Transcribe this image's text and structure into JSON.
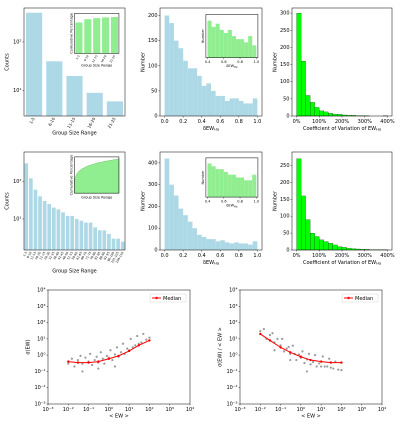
{
  "chart_data": [
    {
      "type": "bar",
      "yscale": "log",
      "color": "#add8e6",
      "categories": [
        "1-5",
        "6-10",
        "11-15",
        "16-20",
        "21-25"
      ],
      "values": [
        400,
        40,
        20,
        9,
        6
      ],
      "ylim": [
        3,
        500
      ],
      "yticks": [
        {
          "value": 10,
          "label": "10¹"
        },
        {
          "value": 100,
          "label": "10²"
        }
      ],
      "ylabel": "Counts",
      "xlabel": "Group Size Range",
      "inset": {
        "type": "bar",
        "color": "#90ee90",
        "categories": [
          "1-5",
          "6-10",
          "11-15",
          "16-20",
          "21-25"
        ],
        "values": [
          85,
          94,
          97,
          99,
          100
        ],
        "ylim": [
          0,
          110
        ],
        "ylabel": "Cumulative Percentage",
        "xlabel": "Group Size Range"
      }
    },
    {
      "type": "histogram",
      "color": "#add8e6",
      "bins": [
        0,
        0.05,
        0.1,
        0.15,
        0.2,
        0.25,
        0.3,
        0.35,
        0.4,
        0.45,
        0.5,
        0.55,
        0.6,
        0.65,
        0.7,
        0.75,
        0.8,
        0.85,
        0.9,
        0.95,
        1.0
      ],
      "values": [
        200,
        185,
        150,
        135,
        110,
        95,
        95,
        80,
        60,
        65,
        50,
        40,
        40,
        30,
        35,
        35,
        30,
        25,
        25,
        35
      ],
      "xlim": [
        -0.05,
        1.05
      ],
      "ylim": [
        0,
        215
      ],
      "xticks": [
        {
          "value": 0,
          "label": "0.0"
        },
        0.2,
        0.4,
        0.6,
        0.8,
        {
          "value": 1,
          "label": "1.0"
        }
      ],
      "yticks": [
        0,
        50,
        100,
        150,
        200
      ],
      "ylabel": "Number",
      "xlabel": {
        "text": "δEW",
        "sub": "Hα"
      },
      "inset": {
        "type": "histogram",
        "color": "#90ee90",
        "bins": [
          0.4,
          0.45,
          0.5,
          0.55,
          0.6,
          0.65,
          0.7,
          0.75,
          0.8,
          0.85,
          0.9,
          0.95,
          1.0
        ],
        "values": [
          60,
          50,
          55,
          45,
          40,
          45,
          35,
          30,
          30,
          25,
          35,
          20
        ],
        "xlim": [
          0.38,
          1.02
        ],
        "ylim": [
          0,
          70
        ],
        "xticks": [
          0.4,
          0.6,
          0.8,
          {
            "value": 1,
            "label": "1.0"
          }
        ],
        "ylabel": "Number",
        "xlabel": {
          "text": "δEW",
          "sub": "Hα"
        }
      }
    },
    {
      "type": "histogram",
      "color": "#00ff00",
      "bins": [
        0,
        20,
        40,
        60,
        80,
        100,
        120,
        140,
        160,
        180,
        200,
        220,
        240,
        260,
        280,
        300,
        320,
        340,
        360,
        380,
        400
      ],
      "values": [
        300,
        160,
        60,
        40,
        25,
        15,
        12,
        8,
        5,
        5,
        3,
        2,
        2,
        1,
        1,
        1,
        0,
        0,
        0,
        1
      ],
      "xlim": [
        -20,
        420
      ],
      "ylim": [
        0,
        315
      ],
      "xticks": [
        {
          "value": 0,
          "label": "0%"
        },
        {
          "value": 100,
          "label": "100%"
        },
        {
          "value": 200,
          "label": "200%"
        },
        {
          "value": 300,
          "label": "300%"
        },
        {
          "value": 400,
          "label": "400%"
        }
      ],
      "yticks": [
        0,
        50,
        100,
        150,
        200,
        250,
        300
      ],
      "ylabel": "Number",
      "xlabel": {
        "text": "Coefficient of Variation of EW",
        "sub": "Hα"
      }
    },
    {
      "type": "bar",
      "yscale": "log",
      "color": "#add8e6",
      "categories": [
        "1-5",
        "6-10",
        "11-15",
        "16-20",
        "21-25",
        "26-30",
        "31-35",
        "36-40",
        "41-45",
        "46-50",
        "51-55",
        "56-60",
        "61-65",
        "66-70",
        "71-75",
        "76-80",
        "81-85",
        "86-90",
        "91-95",
        "96-100",
        "101-105",
        "106-110"
      ],
      "values": [
        300,
        120,
        60,
        40,
        30,
        25,
        20,
        18,
        15,
        12,
        12,
        10,
        9,
        8,
        8,
        6,
        5,
        5,
        4,
        3,
        3,
        2.5
      ],
      "ylim": [
        1.5,
        600
      ],
      "yticks": [
        {
          "value": 10,
          "label": "10¹"
        },
        {
          "value": 100,
          "label": "10²"
        }
      ],
      "ylabel": "Counts",
      "xlabel": "Group Size Range",
      "inset": {
        "type": "area",
        "color": "#90ee90",
        "values": [
          40,
          55,
          63,
          68,
          72,
          75,
          78,
          80,
          82,
          84,
          86,
          88,
          89,
          90,
          92,
          93,
          94,
          95,
          96,
          97,
          98,
          100
        ],
        "ylim": [
          0,
          105
        ],
        "ylabel": "Cumulative Percentage",
        "xlabel": "Group Size Range"
      }
    },
    {
      "type": "histogram",
      "color": "#add8e6",
      "bins": [
        0,
        0.05,
        0.1,
        0.15,
        0.2,
        0.25,
        0.3,
        0.35,
        0.4,
        0.45,
        0.5,
        0.55,
        0.6,
        0.65,
        0.7,
        0.75,
        0.8,
        0.85,
        0.9,
        0.95,
        1.0
      ],
      "values": [
        420,
        300,
        250,
        190,
        160,
        130,
        100,
        70,
        60,
        50,
        50,
        40,
        45,
        35,
        30,
        35,
        30,
        30,
        25,
        40
      ],
      "xlim": [
        -0.05,
        1.05
      ],
      "ylim": [
        0,
        450
      ],
      "xticks": [
        {
          "value": 0,
          "label": "0.0"
        },
        0.2,
        0.4,
        0.6,
        0.8,
        {
          "value": 1,
          "label": "1.0"
        }
      ],
      "yticks": [
        0,
        100,
        200,
        300,
        400
      ],
      "ylabel": "Number",
      "xlabel": {
        "text": "δEW",
        "sub": "Hα"
      },
      "inset": {
        "type": "histogram",
        "color": "#90ee90",
        "bins": [
          0.4,
          0.45,
          0.5,
          0.55,
          0.6,
          0.65,
          0.7,
          0.75,
          0.8,
          0.85,
          0.9,
          0.95,
          1.0
        ],
        "values": [
          60,
          55,
          50,
          50,
          45,
          40,
          40,
          35,
          35,
          30,
          30,
          40
        ],
        "xlim": [
          0.38,
          1.02
        ],
        "ylim": [
          0,
          70
        ],
        "xticks": [
          0.4,
          0.6,
          0.8,
          {
            "value": 1,
            "label": "1.0"
          }
        ],
        "ylabel": "Number",
        "xlabel": {
          "text": "δEW",
          "sub": "Hα"
        }
      }
    },
    {
      "type": "histogram",
      "color": "#00ff00",
      "bins": [
        0,
        20,
        40,
        60,
        80,
        100,
        120,
        140,
        160,
        180,
        200,
        220,
        240,
        260,
        280,
        300,
        320,
        340,
        360,
        380,
        400
      ],
      "values": [
        270,
        160,
        90,
        50,
        40,
        30,
        25,
        20,
        15,
        10,
        8,
        5,
        4,
        3,
        2,
        2,
        1,
        1,
        1,
        1
      ],
      "xlim": [
        -20,
        420
      ],
      "ylim": [
        0,
        290
      ],
      "xticks": [
        {
          "value": 0,
          "label": "0%"
        },
        {
          "value": 100,
          "label": "100%"
        },
        {
          "value": 200,
          "label": "200%"
        },
        {
          "value": 300,
          "label": "300%"
        },
        {
          "value": 400,
          "label": "400%"
        }
      ],
      "yticks": [
        0,
        50,
        100,
        150,
        200,
        250
      ],
      "ylabel": "Number",
      "xlabel": {
        "text": "Coefficient of Variation of EW",
        "sub": "Hα"
      }
    },
    {
      "type": "scatter",
      "xscale": "log",
      "yscale": "log",
      "legend": "upper right",
      "xlim": [
        0.001,
        10000
      ],
      "ylim": [
        0.001,
        10000
      ],
      "xticks": [
        {
          "value": 0.001,
          "label": "10⁻³"
        },
        {
          "value": 0.01,
          "label": "10⁻²"
        },
        {
          "value": 0.1,
          "label": "10⁻¹"
        },
        {
          "value": 1,
          "label": "10⁰"
        },
        {
          "value": 10,
          "label": "10¹"
        },
        {
          "value": 100,
          "label": "10²"
        },
        {
          "value": 1000,
          "label": "10³"
        },
        {
          "value": 10000,
          "label": "10⁴"
        }
      ],
      "yticks": [
        {
          "value": 0.001,
          "label": "10⁻³"
        },
        {
          "value": 0.01,
          "label": "10⁻²"
        },
        {
          "value": 0.1,
          "label": "10⁻¹"
        },
        {
          "value": 1,
          "label": "10⁰"
        },
        {
          "value": 10,
          "label": "10¹"
        },
        {
          "value": 100,
          "label": "10²"
        },
        {
          "value": 1000,
          "label": "10³"
        },
        {
          "value": 10000,
          "label": "10⁴"
        }
      ],
      "xlabel": "< EW >",
      "ylabel": "σ(EW)",
      "points": {
        "color": "#808080",
        "x": [
          0.01,
          0.015,
          0.02,
          0.03,
          0.04,
          0.05,
          0.07,
          0.1,
          0.12,
          0.15,
          0.2,
          0.25,
          0.3,
          0.4,
          0.5,
          0.6,
          0.8,
          1,
          1.2,
          1.5,
          2,
          2.5,
          3,
          4,
          5,
          6,
          8,
          10,
          12,
          15,
          20,
          25,
          30,
          40,
          50,
          70,
          100,
          0.05,
          0.3,
          2
        ],
        "y": [
          0.3,
          0.6,
          0.2,
          0.5,
          0.9,
          0.3,
          0.7,
          0.4,
          1.2,
          0.25,
          0.5,
          0.8,
          0.35,
          1.5,
          0.6,
          0.3,
          0.9,
          0.7,
          2,
          0.5,
          1.1,
          3,
          0.8,
          1.5,
          5,
          1.2,
          2.5,
          2,
          10,
          3,
          4,
          15,
          5,
          6,
          20,
          9,
          12,
          0.1,
          0.15,
          0.2
        ]
      },
      "series": [
        {
          "name": "Median",
          "color": "#ff0000",
          "x": [
            0.01,
            0.03,
            0.1,
            0.3,
            1,
            3,
            10,
            30,
            100
          ],
          "y": [
            0.4,
            0.35,
            0.35,
            0.4,
            0.6,
            0.9,
            1.8,
            4,
            8
          ]
        }
      ]
    },
    {
      "type": "scatter",
      "xscale": "log",
      "yscale": "log",
      "legend": "upper right",
      "xlim": [
        0.001,
        10000
      ],
      "ylim": [
        0.001,
        10000
      ],
      "xticks": [
        {
          "value": 0.001,
          "label": "10⁻³"
        },
        {
          "value": 0.01,
          "label": "10⁻²"
        },
        {
          "value": 0.1,
          "label": "10⁻¹"
        },
        {
          "value": 1,
          "label": "10⁰"
        },
        {
          "value": 10,
          "label": "10¹"
        },
        {
          "value": 100,
          "label": "10²"
        },
        {
          "value": 1000,
          "label": "10³"
        },
        {
          "value": 10000,
          "label": "10⁴"
        }
      ],
      "yticks": [
        {
          "value": 0.001,
          "label": "10⁻³"
        },
        {
          "value": 0.01,
          "label": "10⁻²"
        },
        {
          "value": 0.1,
          "label": "10⁻¹"
        },
        {
          "value": 1,
          "label": "10⁰"
        },
        {
          "value": 10,
          "label": "10¹"
        },
        {
          "value": 100,
          "label": "10²"
        },
        {
          "value": 1000,
          "label": "10³"
        },
        {
          "value": 10000,
          "label": "10⁴"
        }
      ],
      "xlabel": "< EW >",
      "ylabel": "σ(EW) / < EW >",
      "points": {
        "color": "#808080",
        "x": [
          0.01,
          0.015,
          0.02,
          0.03,
          0.04,
          0.05,
          0.07,
          0.1,
          0.12,
          0.15,
          0.2,
          0.25,
          0.3,
          0.4,
          0.5,
          0.6,
          0.8,
          1,
          1.2,
          1.5,
          2,
          2.5,
          3,
          4,
          5,
          6,
          8,
          10,
          12,
          15,
          20,
          25,
          30,
          40,
          50,
          70,
          100,
          0.05,
          0.3,
          2
        ],
        "y": [
          30,
          40,
          10,
          17,
          22,
          6,
          10,
          4,
          10,
          1.7,
          2.5,
          3.2,
          1.2,
          3.8,
          1.2,
          0.5,
          1.1,
          0.7,
          1.7,
          0.33,
          0.55,
          1.2,
          0.27,
          0.38,
          1,
          0.2,
          0.31,
          0.2,
          0.83,
          0.2,
          0.2,
          0.6,
          0.17,
          0.15,
          0.4,
          0.13,
          0.12,
          2,
          0.5,
          0.1
        ]
      },
      "series": [
        {
          "name": "Median",
          "color": "#ff0000",
          "x": [
            0.01,
            0.03,
            0.1,
            0.3,
            1,
            3,
            10,
            30,
            100
          ],
          "y": [
            20,
            8,
            3,
            1.5,
            0.8,
            0.5,
            0.4,
            0.35,
            0.35
          ]
        }
      ]
    }
  ]
}
